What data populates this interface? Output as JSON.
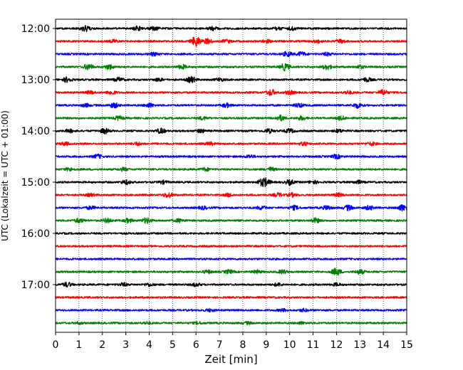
{
  "chart_data": {
    "type": "line",
    "xlabel": "Zeit  [min]",
    "ylabel": "UTC (Lokalzeit = UTC + 01:00)",
    "xlim": [
      0,
      15
    ],
    "x_ticks": [
      "0",
      "1",
      "2",
      "3",
      "4",
      "5",
      "6",
      "7",
      "8",
      "9",
      "10",
      "11",
      "12",
      "13",
      "14",
      "15"
    ],
    "y_ticks": [
      "12:00",
      "13:00",
      "14:00",
      "15:00",
      "16:00",
      "17:00"
    ],
    "grid": "vertical dotted lines at each minute",
    "trace_interval_minutes": 15,
    "colors_cycle": [
      "#000000",
      "#ff0000",
      "#0000ff",
      "#008000"
    ],
    "series": [
      {
        "start": "12:00",
        "color": "#000000",
        "bursts": [
          [
            1.3,
            1.4
          ],
          [
            3.5,
            0.8
          ],
          [
            4.2,
            0.8
          ],
          [
            6.7,
            0.8
          ],
          [
            9.5,
            0.6
          ],
          [
            10.1,
            0.6
          ]
        ]
      },
      {
        "start": "12:15",
        "color": "#ff0000",
        "bursts": [
          [
            2.5,
            0.6
          ],
          [
            6.0,
            2.2
          ],
          [
            6.5,
            1.0
          ],
          [
            7.3,
            0.6
          ],
          [
            9.0,
            0.6
          ],
          [
            11.2,
            0.6
          ],
          [
            12.2,
            0.7
          ]
        ]
      },
      {
        "start": "12:30",
        "color": "#0000ff",
        "bursts": [
          [
            4.2,
            0.6
          ],
          [
            9.9,
            1.0
          ],
          [
            10.5,
            0.8
          ],
          [
            11.6,
            0.6
          ]
        ]
      },
      {
        "start": "12:45",
        "color": "#008000",
        "bursts": [
          [
            1.4,
            1.2
          ],
          [
            2.3,
            1.0
          ],
          [
            5.4,
            0.8
          ],
          [
            9.8,
            1.4
          ],
          [
            11.6,
            1.0
          ],
          [
            13.0,
            0.6
          ]
        ]
      },
      {
        "start": "13:00",
        "color": "#000000",
        "bursts": [
          [
            0.5,
            1.0
          ],
          [
            2.7,
            0.8
          ],
          [
            4.4,
            0.6
          ],
          [
            5.8,
            1.2
          ],
          [
            7.0,
            0.6
          ],
          [
            13.3,
            0.8
          ]
        ]
      },
      {
        "start": "13:15",
        "color": "#ff0000",
        "bursts": [
          [
            1.5,
            0.6
          ],
          [
            2.4,
            0.8
          ],
          [
            9.2,
            1.2
          ],
          [
            10.0,
            0.8
          ],
          [
            12.5,
            0.6
          ],
          [
            14.0,
            1.1
          ]
        ]
      },
      {
        "start": "13:30",
        "color": "#0000ff",
        "bursts": [
          [
            1.3,
            0.6
          ],
          [
            2.5,
            1.0
          ],
          [
            4.0,
            0.8
          ],
          [
            7.3,
            0.8
          ],
          [
            10.4,
            0.8
          ],
          [
            12.9,
            1.0
          ]
        ]
      },
      {
        "start": "13:45",
        "color": "#008000",
        "bursts": [
          [
            2.7,
            0.8
          ],
          [
            6.3,
            0.6
          ],
          [
            9.6,
            1.1
          ],
          [
            10.5,
            0.7
          ],
          [
            12.2,
            0.7
          ]
        ]
      },
      {
        "start": "14:00",
        "color": "#000000",
        "bursts": [
          [
            0.6,
            0.6
          ],
          [
            2.1,
            1.0
          ],
          [
            4.5,
            1.0
          ],
          [
            6.2,
            0.7
          ],
          [
            9.1,
            0.8
          ],
          [
            10.0,
            0.8
          ],
          [
            12.1,
            0.6
          ]
        ]
      },
      {
        "start": "14:15",
        "color": "#ff0000",
        "bursts": [
          [
            0.4,
            0.6
          ],
          [
            3.5,
            0.6
          ],
          [
            6.6,
            0.6
          ],
          [
            10.6,
            0.6
          ],
          [
            13.5,
            0.6
          ]
        ]
      },
      {
        "start": "14:30",
        "color": "#0000ff",
        "bursts": [
          [
            1.8,
            0.8
          ],
          [
            8.3,
            0.6
          ],
          [
            12.0,
            0.8
          ]
        ]
      },
      {
        "start": "14:45",
        "color": "#008000",
        "bursts": [
          [
            0.6,
            0.6
          ],
          [
            2.9,
            0.6
          ],
          [
            6.4,
            0.6
          ],
          [
            9.2,
            0.7
          ]
        ]
      },
      {
        "start": "15:00",
        "color": "#000000",
        "bursts": [
          [
            3.0,
            0.8
          ],
          [
            4.6,
            0.6
          ],
          [
            8.8,
            1.1
          ],
          [
            9.0,
            1.2
          ],
          [
            10.0,
            1.0
          ],
          [
            11.0,
            0.6
          ],
          [
            12.9,
            0.6
          ]
        ]
      },
      {
        "start": "15:15",
        "color": "#ff0000",
        "bursts": [
          [
            1.5,
            0.5
          ],
          [
            4.8,
            1.0
          ],
          [
            7.4,
            0.6
          ],
          [
            9.5,
            0.7
          ],
          [
            10.1,
            0.7
          ],
          [
            12.1,
            0.6
          ]
        ]
      },
      {
        "start": "15:30",
        "color": "#0000ff",
        "bursts": [
          [
            1.5,
            0.6
          ],
          [
            6.3,
            0.6
          ],
          [
            8.8,
            0.7
          ],
          [
            10.2,
            0.8
          ],
          [
            11.6,
            0.8
          ],
          [
            12.5,
            1.0
          ],
          [
            13.4,
            0.8
          ],
          [
            14.8,
            1.2
          ]
        ]
      },
      {
        "start": "15:45",
        "color": "#008000",
        "bursts": [
          [
            1.0,
            0.8
          ],
          [
            2.2,
            0.8
          ],
          [
            3.1,
            0.8
          ],
          [
            3.9,
            1.1
          ],
          [
            5.3,
            0.7
          ],
          [
            11.1,
            0.9
          ]
        ]
      },
      {
        "start": "16:00",
        "color": "#000000",
        "bursts": []
      },
      {
        "start": "16:15",
        "color": "#ff0000",
        "bursts": []
      },
      {
        "start": "16:30",
        "color": "#0000ff",
        "bursts": []
      },
      {
        "start": "16:45",
        "color": "#008000",
        "bursts": [
          [
            6.5,
            0.6
          ],
          [
            7.4,
            0.7
          ],
          [
            8.6,
            0.6
          ],
          [
            9.7,
            0.7
          ],
          [
            12.0,
            1.5
          ],
          [
            13.0,
            0.9
          ]
        ]
      },
      {
        "start": "17:00",
        "color": "#000000",
        "bursts": [
          [
            0.5,
            0.9
          ],
          [
            2.9,
            0.6
          ],
          [
            4.0,
            0.6
          ],
          [
            6.0,
            0.6
          ],
          [
            9.5,
            0.6
          ],
          [
            12.0,
            0.5
          ]
        ]
      },
      {
        "start": "17:15",
        "color": "#ff0000",
        "bursts": []
      },
      {
        "start": "17:30",
        "color": "#0000ff",
        "bursts": [
          [
            6.6,
            0.5
          ],
          [
            9.7,
            0.5
          ],
          [
            10.6,
            0.5
          ]
        ]
      },
      {
        "start": "17:45",
        "color": "#008000",
        "bursts": [
          [
            1.0,
            0.4
          ],
          [
            3.9,
            0.4
          ],
          [
            6.1,
            0.4
          ],
          [
            8.2,
            0.4
          ],
          [
            10.5,
            0.4
          ]
        ]
      }
    ]
  }
}
